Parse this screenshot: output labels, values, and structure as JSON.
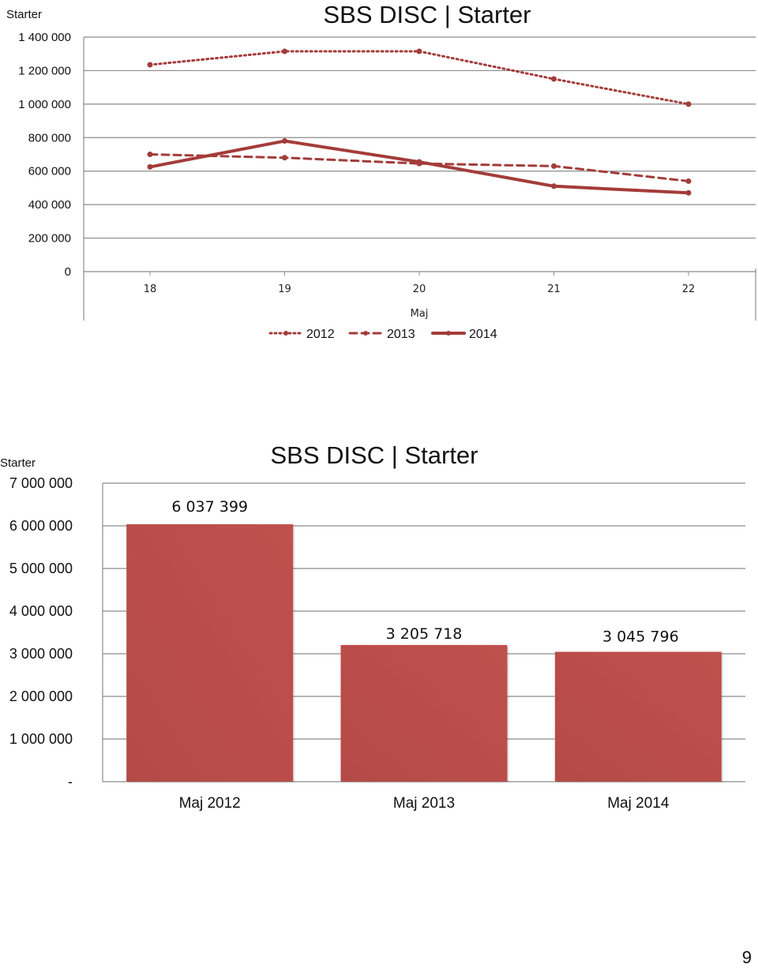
{
  "chart_data": [
    {
      "type": "line",
      "title": "SBS DISC | Starter",
      "ylabel": "Starter",
      "xlabel": "Maj",
      "x": [
        "18",
        "19",
        "20",
        "21",
        "22"
      ],
      "ylim": [
        0,
        1400000
      ],
      "yticks": [
        "0",
        "200 000",
        "400 000",
        "600 000",
        "800 000",
        "1 000 000",
        "1 200 000",
        "1 400 000"
      ],
      "grid": true,
      "legend": "bottom",
      "series": [
        {
          "name": "2012",
          "style": "dotted",
          "color": "#a33c3a",
          "values": [
            1235000,
            1315000,
            1315000,
            1150000,
            1000000
          ]
        },
        {
          "name": "2013",
          "style": "dashed",
          "color": "#a33c3a",
          "values": [
            700000,
            680000,
            645000,
            630000,
            540000
          ]
        },
        {
          "name": "2014",
          "style": "solid",
          "color": "#a33c3a",
          "values": [
            625000,
            780000,
            655000,
            510000,
            470000
          ]
        }
      ]
    },
    {
      "type": "bar",
      "title": "SBS DISC | Starter",
      "ylabel": "Starter",
      "categories": [
        "Maj 2012",
        "Maj 2013",
        "Maj 2014"
      ],
      "values": [
        6037399,
        3205718,
        3045796
      ],
      "data_labels": [
        "6 037 399",
        "3 205 718",
        "3 045 796"
      ],
      "ylim": [
        0,
        7000000
      ],
      "yticks": [
        "-",
        "1 000 000",
        "2 000 000",
        "3 000 000",
        "4 000 000",
        "5 000 000",
        "6 000 000",
        "7 000 000"
      ],
      "grid": true,
      "color": "#c0504d"
    }
  ],
  "page_number": "9"
}
